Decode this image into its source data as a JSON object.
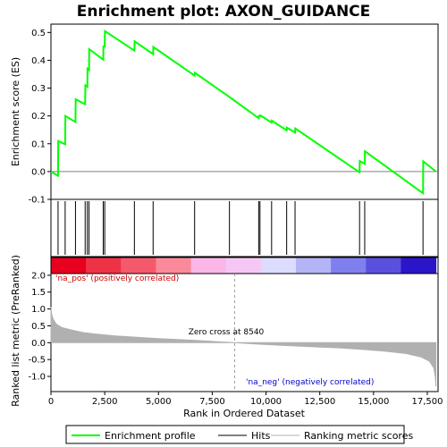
{
  "chart_data": {
    "type": "line",
    "title": "Enrichment plot: AXON_GUIDANCE",
    "xlabel": "Rank in Ordered Dataset",
    "x_range": [
      0,
      18000
    ],
    "x_ticks": [
      0,
      2500,
      5000,
      7500,
      10000,
      12500,
      15000,
      17500
    ],
    "x_tick_labels": [
      "0",
      "2,500",
      "5,000",
      "7,500",
      "10,000",
      "12,500",
      "15,000",
      "17,500"
    ],
    "es_panel": {
      "ylabel": "Enrichment score (ES)",
      "ylim": [
        -0.1,
        0.53
      ],
      "y_ticks": [
        -0.1,
        0.0,
        0.1,
        0.2,
        0.3,
        0.4,
        0.5
      ],
      "y_tick_labels": [
        "-0.1",
        "0.0",
        "0.1",
        "0.2",
        "0.3",
        "0.4",
        "0.5"
      ],
      "color": "#00ff00",
      "points": [
        [
          0,
          0.0
        ],
        [
          330,
          -0.015
        ],
        [
          340,
          0.11
        ],
        [
          660,
          0.098
        ],
        [
          670,
          0.2
        ],
        [
          1140,
          0.178
        ],
        [
          1150,
          0.26
        ],
        [
          1590,
          0.242
        ],
        [
          1600,
          0.31
        ],
        [
          1690,
          0.305
        ],
        [
          1700,
          0.37
        ],
        [
          1770,
          0.365
        ],
        [
          1780,
          0.44
        ],
        [
          2430,
          0.402
        ],
        [
          2440,
          0.45
        ],
        [
          2500,
          0.45
        ],
        [
          2510,
          0.505
        ],
        [
          3880,
          0.435
        ],
        [
          3890,
          0.468
        ],
        [
          4750,
          0.422
        ],
        [
          4760,
          0.448
        ],
        [
          6680,
          0.345
        ],
        [
          6690,
          0.355
        ],
        [
          8300,
          0.268
        ],
        [
          9660,
          0.192
        ],
        [
          9670,
          0.2
        ],
        [
          9720,
          0.2
        ],
        [
          9730,
          0.202
        ],
        [
          10260,
          0.176
        ],
        [
          10270,
          0.183
        ],
        [
          10960,
          0.148
        ],
        [
          10970,
          0.158
        ],
        [
          11350,
          0.14
        ],
        [
          11360,
          0.155
        ],
        [
          14350,
          -0.003
        ],
        [
          14360,
          0.038
        ],
        [
          14590,
          0.028
        ],
        [
          14600,
          0.073
        ],
        [
          17300,
          -0.078
        ],
        [
          17310,
          0.037
        ],
        [
          17900,
          0.0
        ]
      ]
    },
    "hits": [
      330,
      660,
      1140,
      1590,
      1690,
      1770,
      2430,
      2500,
      3880,
      4750,
      6680,
      8300,
      9660,
      9720,
      10260,
      10960,
      11350,
      14350,
      14590,
      17300
    ],
    "colorbar": [
      "#e8001f",
      "#ef3347",
      "#f55a6c",
      "#fa8a99",
      "#fbb6e8",
      "#f6c7f5",
      "#dcdcff",
      "#b3b3f6",
      "#7f7fee",
      "#5a50e0",
      "#2a16c8"
    ],
    "metric_panel": {
      "ylabel": "Ranked list metric (PreRanked)",
      "ylim": [
        -1.45,
        2.05
      ],
      "y_ticks": [
        -1.0,
        -0.5,
        0.0,
        0.5,
        1.0,
        1.5,
        2.0
      ],
      "y_tick_labels": [
        "-1.0",
        "-0.5",
        "0.0",
        "0.5",
        "1.0",
        "1.5",
        "2.0"
      ],
      "fill_color": "#b0b0b0",
      "zero_cross": 8540,
      "zero_cross_label": "Zero cross at 8540",
      "pos_label": "'na_pos' (positively correlated)",
      "neg_label": "'na_neg' (negatively correlated)",
      "profile": [
        [
          0,
          1.05
        ],
        [
          30,
          0.85
        ],
        [
          100,
          0.7
        ],
        [
          250,
          0.55
        ],
        [
          500,
          0.45
        ],
        [
          1000,
          0.37
        ],
        [
          1500,
          0.3
        ],
        [
          2000,
          0.26
        ],
        [
          3000,
          0.2
        ],
        [
          4000,
          0.16
        ],
        [
          5000,
          0.12
        ],
        [
          6000,
          0.09
        ],
        [
          7000,
          0.06
        ],
        [
          8000,
          0.02
        ],
        [
          8540,
          0.0
        ],
        [
          9500,
          -0.04
        ],
        [
          10500,
          -0.07
        ],
        [
          11500,
          -0.1
        ],
        [
          12500,
          -0.13
        ],
        [
          13500,
          -0.16
        ],
        [
          14500,
          -0.2
        ],
        [
          15500,
          -0.25
        ],
        [
          16500,
          -0.32
        ],
        [
          17200,
          -0.42
        ],
        [
          17600,
          -0.55
        ],
        [
          17800,
          -0.75
        ],
        [
          17880,
          -1.05
        ],
        [
          17900,
          -1.3
        ]
      ]
    },
    "legend": [
      "Enrichment profile",
      "Hits",
      "Ranking metric scores"
    ]
  }
}
